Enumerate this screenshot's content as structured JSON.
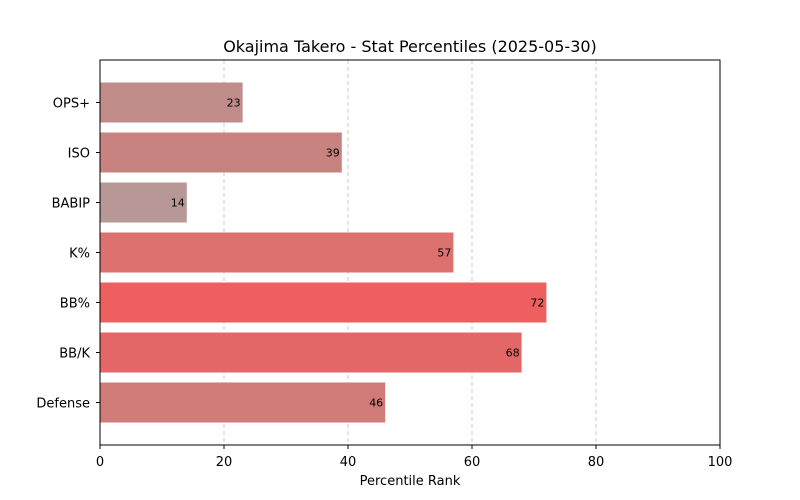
{
  "chart_data": {
    "type": "bar",
    "orientation": "horizontal",
    "title": "Okajima Takero - Stat Percentiles (2025-05-30)",
    "xlabel": "Percentile Rank",
    "ylabel": "",
    "xlim": [
      0,
      100
    ],
    "xticks": [
      0,
      20,
      40,
      60,
      80,
      100
    ],
    "grid": "x-dashed",
    "categories": [
      "OPS+",
      "ISO",
      "BABIP",
      "K%",
      "BB%",
      "BB/K",
      "Defense"
    ],
    "values": [
      23,
      39,
      14,
      57,
      72,
      68,
      46
    ],
    "colors": [
      "#c08c8a",
      "#c88280",
      "#b89896",
      "#dc716f",
      "#ee5f5f",
      "#e46767",
      "#d07b78"
    ]
  }
}
